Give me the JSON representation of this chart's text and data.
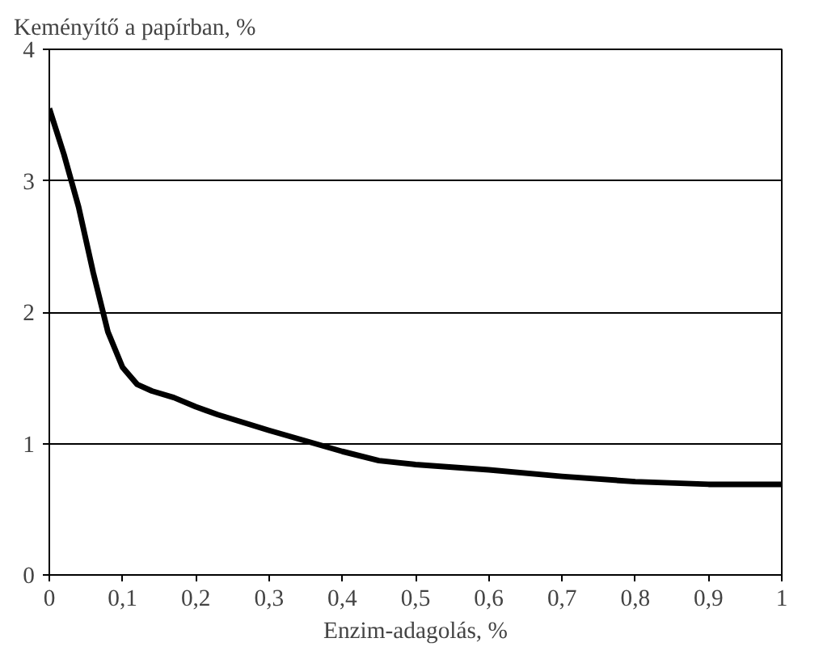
{
  "chart_data": {
    "type": "line",
    "ylabel": "Keményítő a papírban, %",
    "xlabel": "Enzim-adagolás, %",
    "x": [
      0,
      0.02,
      0.04,
      0.06,
      0.08,
      0.1,
      0.12,
      0.14,
      0.17,
      0.2,
      0.23,
      0.3,
      0.35,
      0.4,
      0.45,
      0.5,
      0.6,
      0.7,
      0.8,
      0.9,
      1.0
    ],
    "series": [
      {
        "color": "#000000",
        "values": [
          3.55,
          3.2,
          2.8,
          2.3,
          1.85,
          1.58,
          1.45,
          1.4,
          1.35,
          1.28,
          1.22,
          1.1,
          1.02,
          0.94,
          0.87,
          0.84,
          0.8,
          0.75,
          0.71,
          0.69,
          0.69
        ]
      }
    ],
    "xlim": [
      0,
      1
    ],
    "ylim": [
      0,
      4
    ],
    "xticks": [
      0,
      {
        "value": 0.1,
        "label": "0,1"
      },
      {
        "value": 0.2,
        "label": "0,2"
      },
      {
        "value": 0.3,
        "label": "0,3"
      },
      {
        "value": 0.4,
        "label": "0,4"
      },
      {
        "value": 0.5,
        "label": "0,5"
      },
      {
        "value": 0.6,
        "label": "0,6"
      },
      {
        "value": 0.7,
        "label": "0,7"
      },
      {
        "value": 0.8,
        "label": "0,8"
      },
      {
        "value": 0.9,
        "label": "0,9"
      },
      1
    ],
    "yticks": [
      0,
      1,
      2,
      3,
      4
    ],
    "grid": "y",
    "line_style": "solid"
  }
}
